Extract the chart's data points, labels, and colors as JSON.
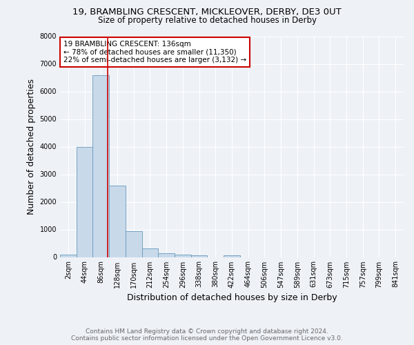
{
  "title_line1": "19, BRAMBLING CRESCENT, MICKLEOVER, DERBY, DE3 0UT",
  "title_line2": "Size of property relative to detached houses in Derby",
  "xlabel": "Distribution of detached houses by size in Derby",
  "ylabel": "Number of detached properties",
  "footer_line1": "Contains HM Land Registry data © Crown copyright and database right 2024.",
  "footer_line2": "Contains public sector information licensed under the Open Government Licence v3.0.",
  "bin_labels": [
    "2sqm",
    "44sqm",
    "86sqm",
    "128sqm",
    "170sqm",
    "212sqm",
    "254sqm",
    "296sqm",
    "338sqm",
    "380sqm",
    "422sqm",
    "464sqm",
    "506sqm",
    "547sqm",
    "589sqm",
    "631sqm",
    "673sqm",
    "715sqm",
    "757sqm",
    "799sqm",
    "841sqm"
  ],
  "bar_values": [
    100,
    4000,
    6600,
    2600,
    950,
    320,
    130,
    80,
    70,
    0,
    70,
    0,
    0,
    0,
    0,
    0,
    0,
    0,
    0,
    0,
    0
  ],
  "bar_color": "#c8d9ea",
  "bar_edge_color": "#6699bb",
  "red_line_x": 2.42,
  "red_line_color": "#cc0000",
  "annotation_text": "19 BRAMBLING CRESCENT: 136sqm\n← 78% of detached houses are smaller (11,350)\n22% of semi-detached houses are larger (3,132) →",
  "annotation_box_color": "#ffffff",
  "annotation_box_edge": "#cc0000",
  "ylim": [
    0,
    8000
  ],
  "ytick_interval": 1000,
  "background_color": "#eef2f7",
  "grid_color": "#ffffff",
  "title_fontsize": 9.5,
  "subtitle_fontsize": 8.5,
  "axis_label_fontsize": 9,
  "tick_fontsize": 7,
  "annotation_fontsize": 7.5,
  "footer_fontsize": 6.5
}
